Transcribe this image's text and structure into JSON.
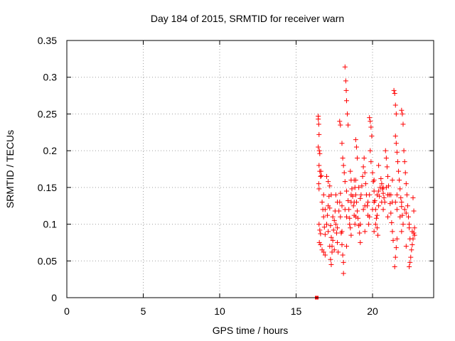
{
  "chart_data": {
    "type": "scatter",
    "title": "Day 184 of 2015, SRMTID for receiver warn",
    "xlabel": "GPS time / hours",
    "ylabel": "SRMTID / TECUs",
    "xlim": [
      0,
      24
    ],
    "ylim": [
      0,
      0.35
    ],
    "x_ticks": [
      0,
      5,
      10,
      15,
      20
    ],
    "y_ticks": [
      0,
      0.05,
      0.1,
      0.15,
      0.2,
      0.25,
      0.3,
      0.35
    ],
    "x_tick_labels": [
      "0",
      "5",
      "10",
      "15",
      "20"
    ],
    "y_tick_labels": [
      "0",
      "0.05",
      "0.1",
      "0.15",
      "0.2",
      "0.25",
      "0.3",
      "0.35"
    ],
    "grid": true,
    "marker": "+",
    "color": "#ff0000",
    "zero_marker": {
      "x": 16.35,
      "y": 0,
      "shape": "square"
    },
    "series": [
      {
        "name": "SRMTID",
        "points": [
          [
            16.45,
            0.247
          ],
          [
            16.45,
            0.243
          ],
          [
            16.48,
            0.236
          ],
          [
            16.5,
            0.222
          ],
          [
            16.45,
            0.205
          ],
          [
            16.52,
            0.2
          ],
          [
            16.55,
            0.196
          ],
          [
            16.5,
            0.18
          ],
          [
            16.55,
            0.172
          ],
          [
            16.6,
            0.165
          ],
          [
            16.48,
            0.155
          ],
          [
            16.5,
            0.148
          ],
          [
            16.62,
            0.172
          ],
          [
            16.65,
            0.166
          ],
          [
            16.5,
            0.1
          ],
          [
            16.55,
            0.092
          ],
          [
            16.6,
            0.087
          ],
          [
            16.52,
            0.075
          ],
          [
            16.6,
            0.072
          ],
          [
            16.7,
            0.13
          ],
          [
            16.75,
            0.12
          ],
          [
            16.8,
            0.11
          ],
          [
            16.85,
            0.096
          ],
          [
            16.9,
            0.086
          ],
          [
            16.7,
            0.065
          ],
          [
            16.8,
            0.062
          ],
          [
            16.9,
            0.058
          ],
          [
            17.0,
            0.1
          ],
          [
            17.05,
            0.112
          ],
          [
            17.1,
            0.125
          ],
          [
            17.15,
            0.138
          ],
          [
            17.2,
            0.122
          ],
          [
            17.25,
            0.098
          ],
          [
            17.3,
            0.082
          ],
          [
            17.35,
            0.07
          ],
          [
            17.0,
            0.165
          ],
          [
            17.1,
            0.158
          ],
          [
            17.2,
            0.152
          ],
          [
            17.3,
            0.14
          ],
          [
            17.25,
            0.052
          ],
          [
            17.3,
            0.045
          ],
          [
            17.35,
            0.062
          ],
          [
            17.4,
            0.078
          ],
          [
            17.45,
            0.092
          ],
          [
            17.5,
            0.105
          ],
          [
            17.55,
            0.118
          ],
          [
            17.6,
            0.1
          ],
          [
            17.65,
            0.088
          ],
          [
            17.7,
            0.075
          ],
          [
            17.75,
            0.062
          ],
          [
            17.8,
            0.118
          ],
          [
            17.85,
            0.13
          ],
          [
            17.9,
            0.142
          ],
          [
            17.95,
            0.088
          ],
          [
            18.0,
            0.072
          ],
          [
            18.05,
            0.058
          ],
          [
            18.1,
            0.048
          ],
          [
            17.85,
            0.24
          ],
          [
            17.9,
            0.235
          ],
          [
            18.0,
            0.21
          ],
          [
            18.05,
            0.19
          ],
          [
            18.1,
            0.18
          ],
          [
            18.15,
            0.17
          ],
          [
            18.1,
            0.033
          ],
          [
            18.2,
            0.314
          ],
          [
            18.25,
            0.295
          ],
          [
            18.28,
            0.282
          ],
          [
            18.3,
            0.268
          ],
          [
            18.35,
            0.25
          ],
          [
            18.4,
            0.235
          ],
          [
            18.2,
            0.158
          ],
          [
            18.3,
            0.145
          ],
          [
            18.4,
            0.132
          ],
          [
            18.45,
            0.12
          ],
          [
            18.5,
            0.108
          ],
          [
            18.55,
            0.095
          ],
          [
            18.6,
            0.085
          ],
          [
            18.55,
            0.172
          ],
          [
            18.6,
            0.16
          ],
          [
            18.65,
            0.148
          ],
          [
            18.7,
            0.138
          ],
          [
            18.75,
            0.125
          ],
          [
            18.8,
            0.112
          ],
          [
            18.85,
            0.1
          ],
          [
            18.9,
            0.215
          ],
          [
            18.95,
            0.205
          ],
          [
            19.0,
            0.19
          ],
          [
            18.8,
            0.16
          ],
          [
            18.85,
            0.15
          ],
          [
            18.9,
            0.14
          ],
          [
            18.95,
            0.13
          ],
          [
            19.0,
            0.118
          ],
          [
            19.05,
            0.108
          ],
          [
            19.1,
            0.098
          ],
          [
            19.15,
            0.088
          ],
          [
            19.2,
            0.075
          ],
          [
            19.25,
            0.14
          ],
          [
            19.3,
            0.152
          ],
          [
            19.35,
            0.165
          ],
          [
            19.4,
            0.178
          ],
          [
            19.45,
            0.19
          ],
          [
            19.5,
            0.17
          ],
          [
            19.55,
            0.155
          ],
          [
            19.6,
            0.14
          ],
          [
            19.65,
            0.125
          ],
          [
            19.7,
            0.112
          ],
          [
            19.75,
            0.1
          ],
          [
            19.8,
            0.245
          ],
          [
            19.85,
            0.24
          ],
          [
            19.9,
            0.232
          ],
          [
            19.95,
            0.22
          ],
          [
            19.85,
            0.2
          ],
          [
            19.9,
            0.185
          ],
          [
            20.0,
            0.17
          ],
          [
            20.05,
            0.158
          ],
          [
            20.1,
            0.145
          ],
          [
            20.15,
            0.132
          ],
          [
            20.2,
            0.12
          ],
          [
            20.25,
            0.108
          ],
          [
            20.3,
            0.095
          ],
          [
            20.35,
            0.085
          ],
          [
            20.1,
            0.09
          ],
          [
            20.2,
            0.1
          ],
          [
            20.3,
            0.112
          ],
          [
            20.4,
            0.125
          ],
          [
            20.45,
            0.138
          ],
          [
            20.5,
            0.15
          ],
          [
            20.55,
            0.162
          ],
          [
            20.6,
            0.155
          ],
          [
            20.65,
            0.148
          ],
          [
            20.7,
            0.142
          ],
          [
            20.75,
            0.136
          ],
          [
            20.8,
            0.13
          ],
          [
            20.85,
            0.2
          ],
          [
            20.9,
            0.19
          ],
          [
            20.95,
            0.178
          ],
          [
            21.0,
            0.165
          ],
          [
            21.05,
            0.152
          ],
          [
            21.1,
            0.14
          ],
          [
            21.15,
            0.128
          ],
          [
            21.2,
            0.115
          ],
          [
            21.25,
            0.102
          ],
          [
            21.3,
            0.09
          ],
          [
            21.35,
            0.078
          ],
          [
            21.4,
            0.282
          ],
          [
            21.45,
            0.278
          ],
          [
            21.5,
            0.262
          ],
          [
            21.55,
            0.25
          ],
          [
            21.5,
            0.22
          ],
          [
            21.55,
            0.21
          ],
          [
            21.6,
            0.198
          ],
          [
            21.65,
            0.185
          ],
          [
            21.7,
            0.172
          ],
          [
            21.75,
            0.16
          ],
          [
            21.8,
            0.148
          ],
          [
            21.85,
            0.136
          ],
          [
            21.9,
            0.124
          ],
          [
            21.95,
            0.112
          ],
          [
            22.0,
            0.1
          ],
          [
            21.45,
            0.042
          ],
          [
            21.5,
            0.055
          ],
          [
            21.55,
            0.068
          ],
          [
            21.6,
            0.08
          ],
          [
            21.9,
            0.255
          ],
          [
            21.95,
            0.25
          ],
          [
            22.0,
            0.236
          ],
          [
            22.05,
            0.2
          ],
          [
            22.1,
            0.185
          ],
          [
            22.15,
            0.17
          ],
          [
            22.2,
            0.155
          ],
          [
            22.25,
            0.14
          ],
          [
            22.3,
            0.125
          ],
          [
            22.35,
            0.11
          ],
          [
            22.4,
            0.095
          ],
          [
            22.45,
            0.08
          ],
          [
            22.4,
            0.042
          ],
          [
            22.45,
            0.048
          ],
          [
            22.5,
            0.055
          ],
          [
            22.55,
            0.065
          ],
          [
            22.6,
            0.072
          ],
          [
            22.65,
            0.08
          ],
          [
            22.7,
            0.088
          ],
          [
            22.75,
            0.095
          ],
          [
            22.65,
            0.136
          ],
          [
            22.7,
            0.118
          ],
          [
            22.75,
            0.085
          ],
          [
            17.5,
            0.065
          ],
          [
            17.7,
            0.095
          ],
          [
            18.0,
            0.125
          ],
          [
            18.3,
            0.11
          ],
          [
            18.6,
            0.13
          ],
          [
            18.9,
            0.11
          ],
          [
            19.2,
            0.135
          ],
          [
            19.5,
            0.125
          ],
          [
            19.8,
            0.14
          ],
          [
            20.1,
            0.13
          ],
          [
            20.4,
            0.145
          ],
          [
            20.7,
            0.15
          ],
          [
            21.0,
            0.14
          ],
          [
            21.3,
            0.13
          ],
          [
            21.6,
            0.12
          ],
          [
            21.9,
            0.13
          ],
          [
            22.2,
            0.115
          ],
          [
            16.8,
            0.14
          ],
          [
            17.1,
            0.09
          ],
          [
            17.4,
            0.11
          ],
          [
            17.7,
            0.13
          ],
          [
            18.0,
            0.09
          ],
          [
            18.3,
            0.07
          ],
          [
            18.6,
            0.14
          ],
          [
            18.9,
            0.16
          ],
          [
            19.2,
            0.1
          ],
          [
            19.5,
            0.09
          ],
          [
            19.8,
            0.11
          ],
          [
            20.1,
            0.16
          ],
          [
            20.4,
            0.18
          ],
          [
            20.7,
            0.12
          ],
          [
            21.0,
            0.11
          ],
          [
            21.3,
            0.16
          ],
          [
            21.6,
            0.14
          ],
          [
            21.9,
            0.09
          ],
          [
            22.2,
            0.07
          ],
          [
            16.9,
            0.12
          ],
          [
            17.2,
            0.07
          ],
          [
            17.6,
            0.14
          ],
          [
            17.9,
            0.11
          ],
          [
            18.2,
            0.12
          ],
          [
            18.5,
            0.1
          ],
          [
            18.8,
            0.13
          ],
          [
            19.1,
            0.15
          ],
          [
            19.4,
            0.12
          ],
          [
            19.7,
            0.13
          ],
          [
            20.0,
            0.12
          ],
          [
            20.3,
            0.14
          ],
          [
            20.6,
            0.13
          ],
          [
            20.9,
            0.15
          ],
          [
            21.2,
            0.14
          ],
          [
            21.5,
            0.13
          ],
          [
            21.8,
            0.11
          ],
          [
            22.1,
            0.12
          ],
          [
            22.4,
            0.1
          ],
          [
            22.6,
            0.09
          ]
        ]
      }
    ]
  }
}
